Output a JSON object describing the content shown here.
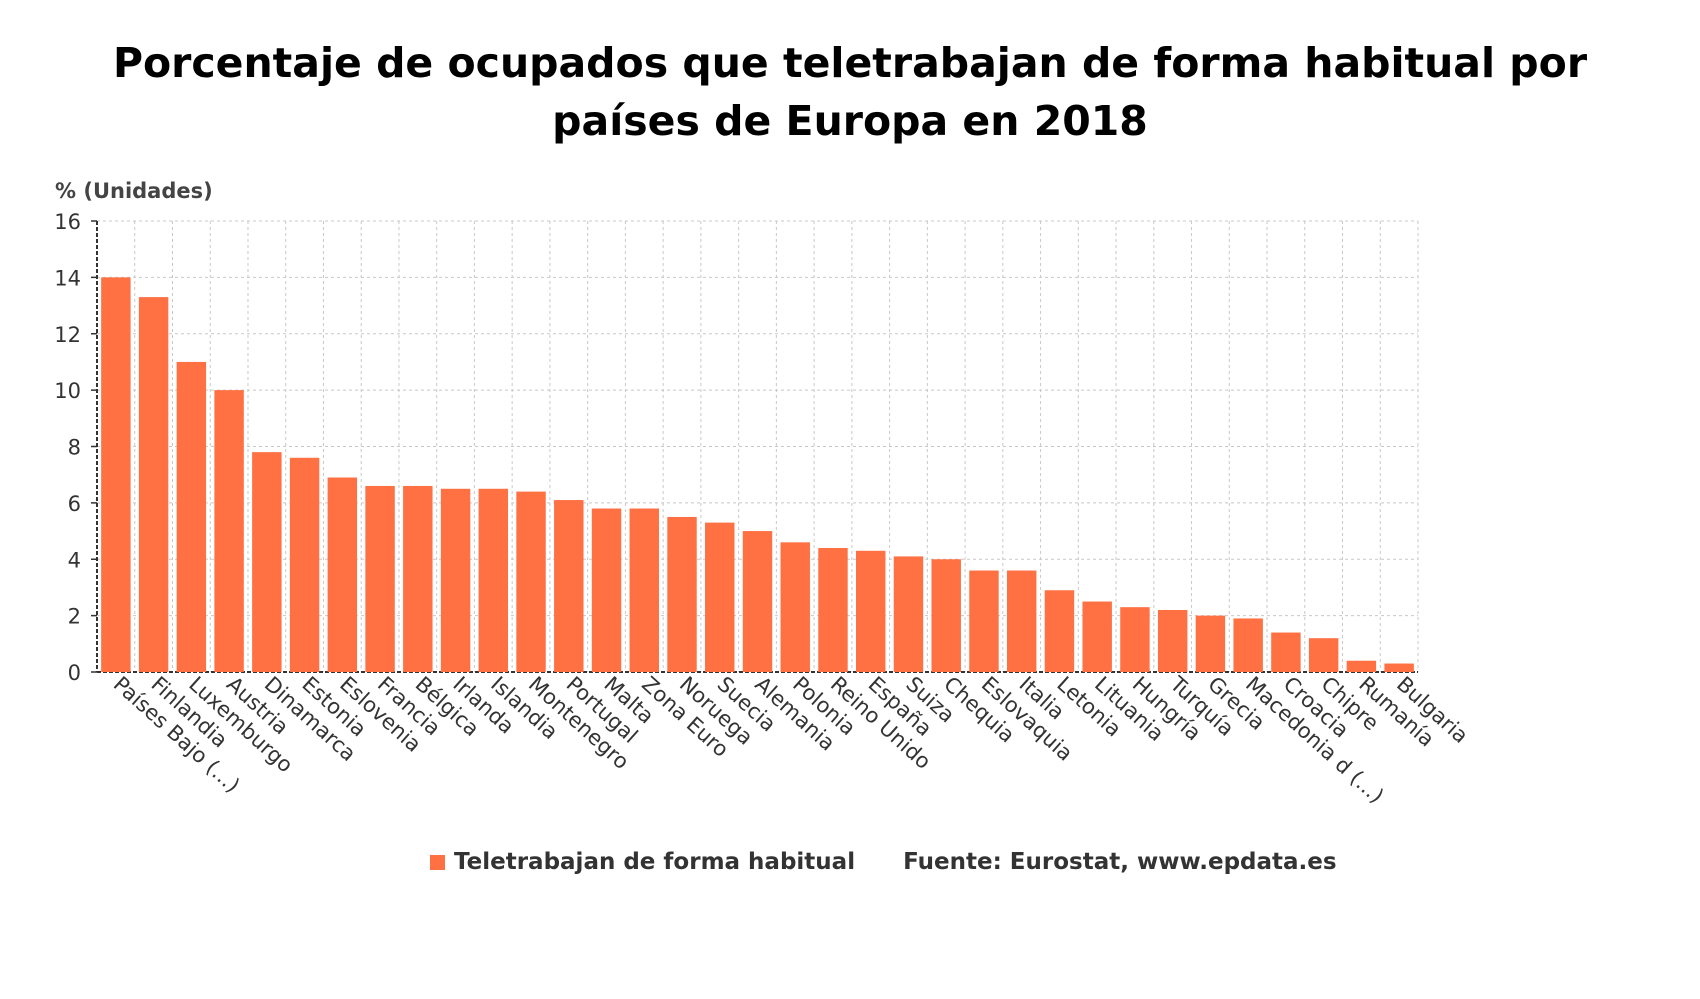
{
  "chart_data": {
    "type": "bar",
    "title_lines": [
      "Porcentaje de ocupados que teletrabajan de forma habitual por",
      "países de Europa en 2018"
    ],
    "ylabel": "% (Unidades)",
    "ylim": [
      0,
      16
    ],
    "yticks": [
      0,
      2,
      4,
      6,
      8,
      10,
      12,
      14,
      16
    ],
    "grid": true,
    "categories": [
      "Países Bajo (...)",
      "Finlandia",
      "Luxemburgo",
      "Austria",
      "Dinamarca",
      "Estonia",
      "Eslovenia",
      "Francia",
      "Bélgica",
      "Irlanda",
      "Islandia",
      "Montenegro",
      "Portugal",
      "Malta",
      "Zona Euro",
      "Noruega",
      "Suecia",
      "Alemania",
      "Polonia",
      "Reino Unido",
      "España",
      "Suiza",
      "Chequia",
      "Eslovaquia",
      "Italia",
      "Letonia",
      "Lituania",
      "Hungría",
      "Turquía",
      "Grecia",
      "Macedonia d (...)",
      "Croacia",
      "Chipre",
      "Rumanía",
      "Bulgaria"
    ],
    "series": [
      {
        "name": "Teletrabajan de forma habitual",
        "color": "#ff7043",
        "values": [
          14.0,
          13.3,
          11.0,
          10.0,
          7.8,
          7.6,
          6.9,
          6.6,
          6.6,
          6.5,
          6.5,
          6.4,
          6.1,
          5.8,
          5.8,
          5.5,
          5.3,
          5.0,
          4.6,
          4.4,
          4.3,
          4.1,
          4.0,
          3.6,
          3.6,
          2.9,
          2.5,
          2.3,
          2.2,
          2.0,
          1.9,
          1.4,
          1.2,
          0.4,
          0.3
        ]
      }
    ],
    "legend": {
      "series_label": "Teletrabajan de forma habitual",
      "source": "Fuente: Eurostat, www.epdata.es"
    }
  }
}
